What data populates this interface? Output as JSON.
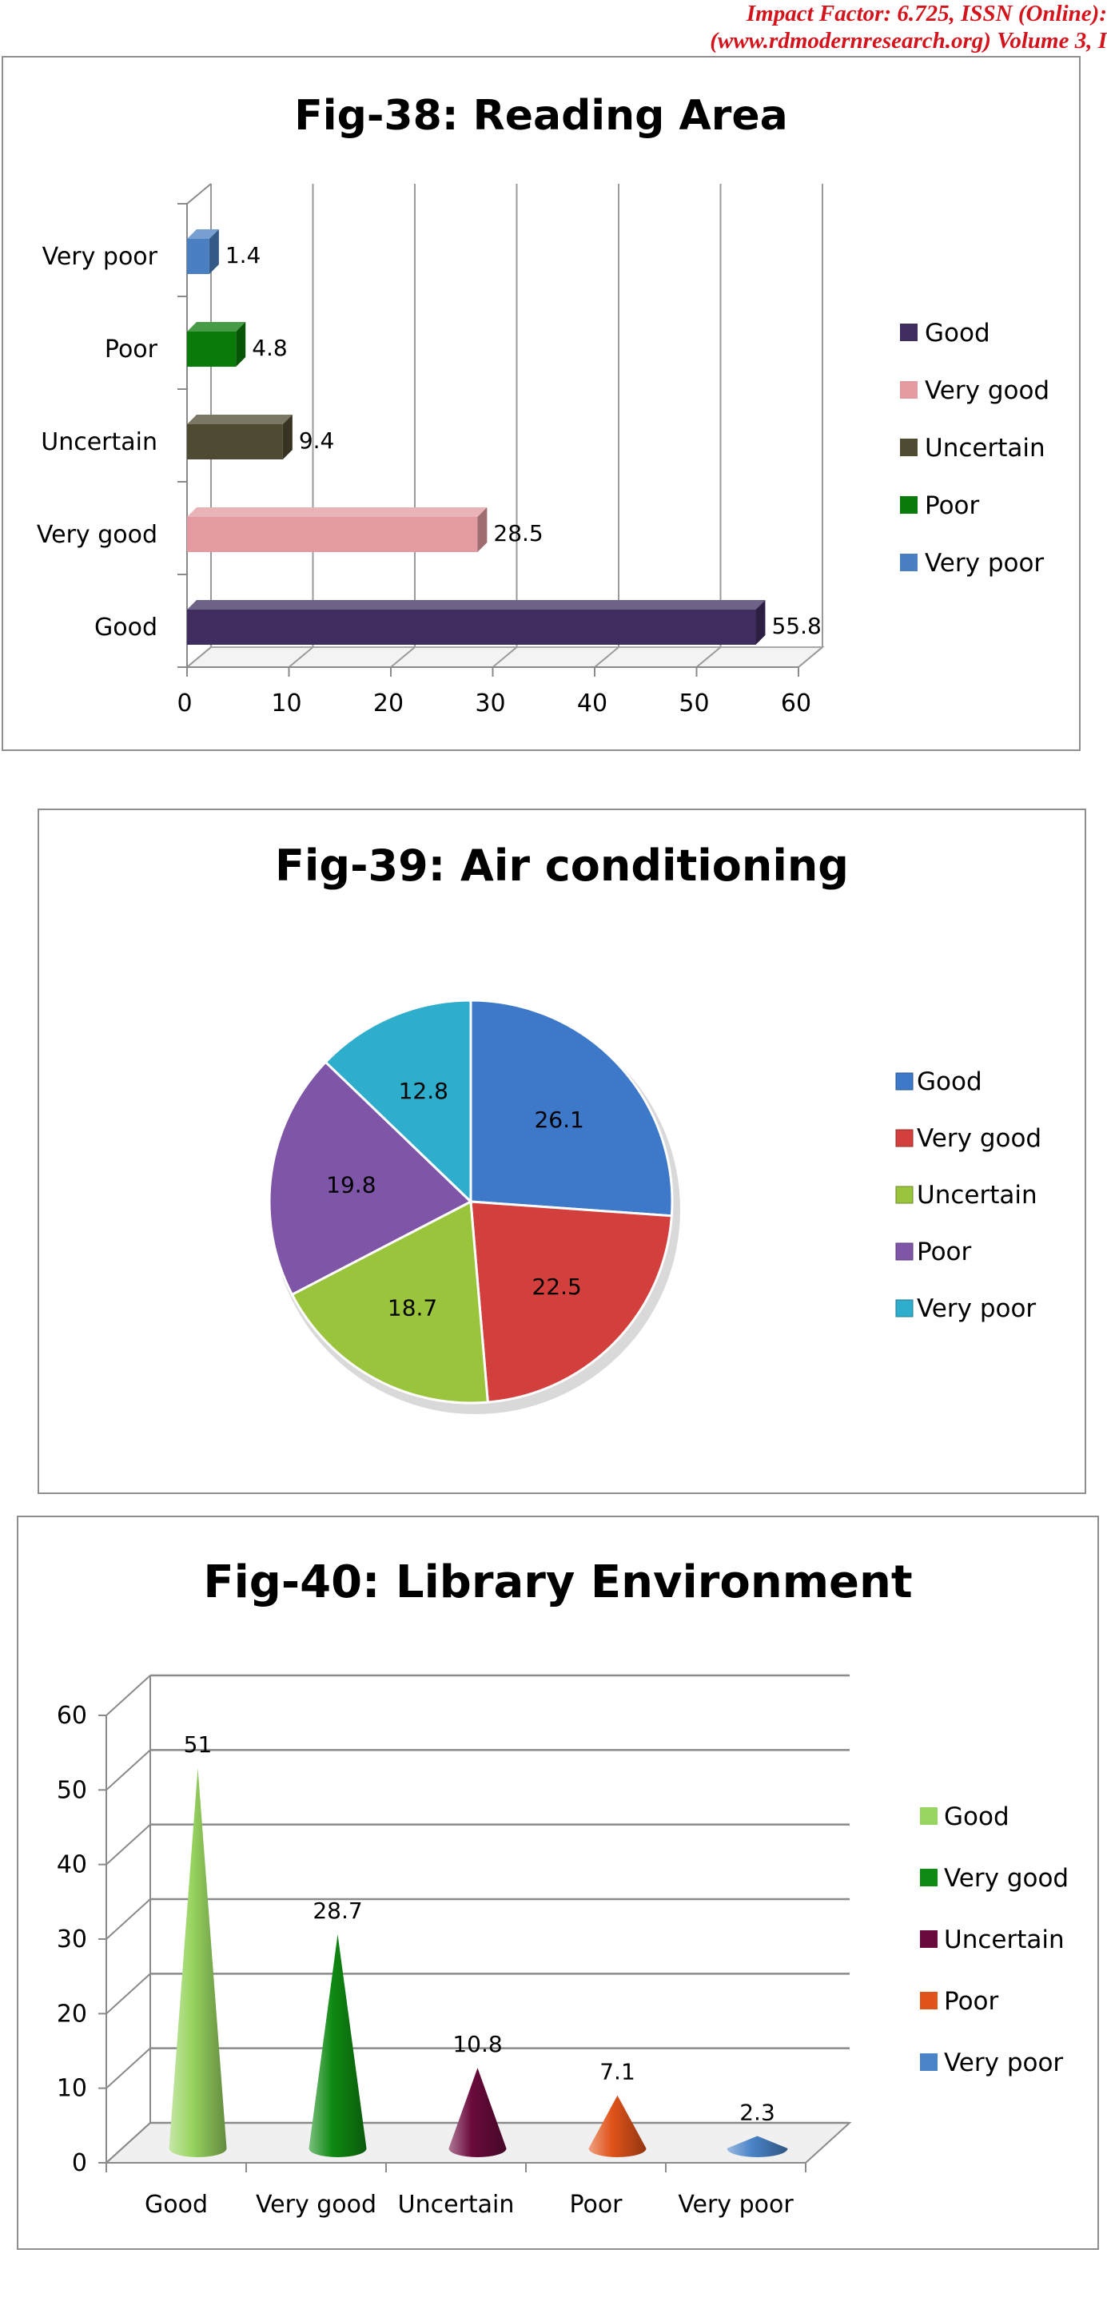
{
  "header": {
    "line1": "Impact Factor: 6.725, ISSN (Online):",
    "line2": "(www.rdmodernresearch.org) Volume 3, I"
  },
  "chart_data": [
    {
      "type": "bar",
      "orientation": "horizontal",
      "title": "Fig-38: Reading Area",
      "categories": [
        "Very poor",
        "Poor",
        "Uncertain",
        "Very good",
        "Good"
      ],
      "values": [
        1.4,
        4.8,
        9.4,
        28.5,
        55.8
      ],
      "colors": [
        "#4a7fc1",
        "#0a7a0a",
        "#4f4a32",
        "#e39aa0",
        "#3f2d5f"
      ],
      "xlim": [
        0,
        60
      ],
      "xticks": [
        0,
        10,
        20,
        30,
        40,
        50,
        60
      ],
      "grid": true,
      "legend_position": "right",
      "legend": [
        "Good",
        "Very good",
        "Uncertain",
        "Poor",
        "Very poor"
      ],
      "legend_colors": [
        "#3f2d5f",
        "#e39aa0",
        "#4f4a32",
        "#0a7a0a",
        "#4a7fc1"
      ]
    },
    {
      "type": "pie",
      "title": "Fig-39: Air conditioning",
      "categories": [
        "Good",
        "Very good",
        "Uncertain",
        "Poor",
        "Very poor"
      ],
      "values": [
        26.1,
        22.5,
        18.7,
        19.8,
        12.8
      ],
      "colors": [
        "#3d78c9",
        "#d23f3c",
        "#9ac43c",
        "#7f55a8",
        "#2eaecc"
      ],
      "legend_position": "right"
    },
    {
      "type": "bar",
      "style": "cone",
      "title": "Fig-40: Library Environment",
      "categories": [
        "Good",
        "Very good",
        "Uncertain",
        "Poor",
        "Very poor"
      ],
      "values": [
        51,
        28.7,
        10.8,
        7.1,
        2.3
      ],
      "colors": [
        "#98d460",
        "#0f8a12",
        "#6a0a3c",
        "#e0531a",
        "#4a84c8"
      ],
      "ylim": [
        0,
        60
      ],
      "yticks": [
        0,
        10,
        20,
        30,
        40,
        50,
        60
      ],
      "grid": true,
      "legend_position": "right"
    }
  ]
}
